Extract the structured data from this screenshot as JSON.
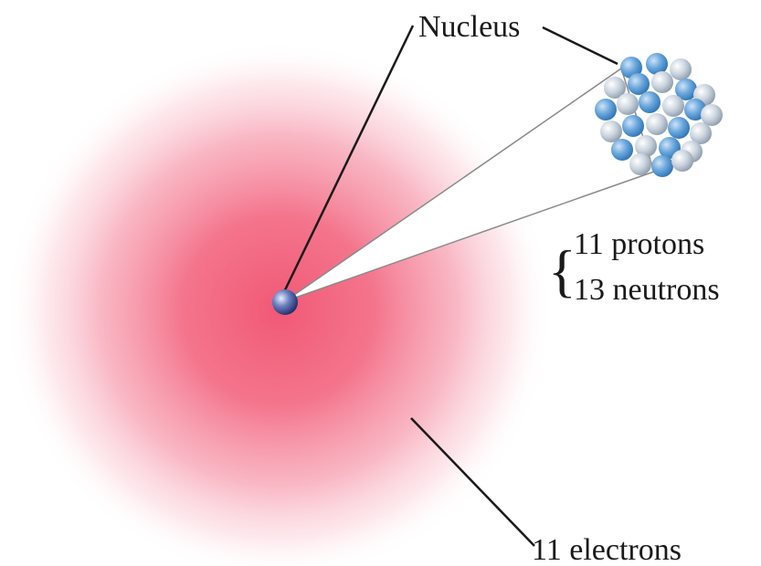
{
  "labels": {
    "nucleus": "Nucleus",
    "protons": "11 protons",
    "neutrons": "13 neutrons",
    "electrons": "11 electrons"
  },
  "colors": {
    "electron_cloud": "#f0506e",
    "proton": "#5b9bd5",
    "neutron": "#c4d0dc",
    "line": "#1a1a1a",
    "wedge_edge": "#8a8a8a"
  }
}
